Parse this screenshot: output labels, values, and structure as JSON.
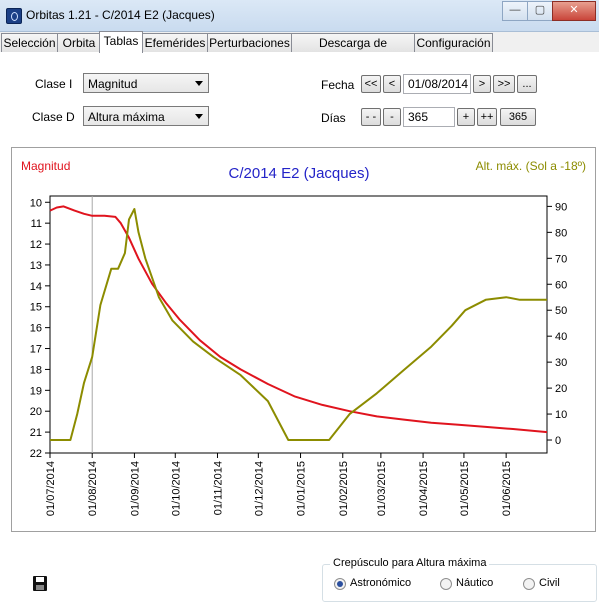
{
  "window": {
    "title": "Orbitas 1.21 - C/2014 E2 (Jacques)",
    "minimize_glyph": "—",
    "maximize_glyph": "▢",
    "close_glyph": "✕"
  },
  "tabs": [
    "Selección",
    "Orbita",
    "Tablas",
    "Efemérides",
    "Perturbaciones",
    "Descarga de elementos",
    "Configuración"
  ],
  "active_tab": "Tablas",
  "controls": {
    "clase_i_label": "Clase I",
    "clase_i_value": "Magnitud",
    "clase_d_label": "Clase D",
    "clase_d_value": "Altura máxima",
    "fecha_label": "Fecha",
    "fecha_value": "01/08/2014",
    "fecha_buttons": [
      "<<",
      "<",
      ">",
      ">>",
      "..."
    ],
    "dias_label": "Días",
    "dias_value": "365",
    "dias_buttons": [
      "- -",
      "-",
      "+",
      "++",
      "365"
    ]
  },
  "chart_data": {
    "type": "line",
    "title": "C/2014 E2 (Jacques)",
    "ylabel_left": "Magnitud",
    "ylabel_right": "Alt. máx. (Sol a -18º)",
    "y_left_ticks": [
      10,
      11,
      12,
      13,
      14,
      15,
      16,
      17,
      18,
      19,
      20,
      21,
      22
    ],
    "y_left_range": [
      9.7,
      22
    ],
    "y_right_ticks": [
      0,
      10,
      20,
      30,
      40,
      50,
      60,
      70,
      80,
      90
    ],
    "y_right_range": [
      -5,
      94
    ],
    "x_ticks": [
      "01/07/2014",
      "01/08/2014",
      "01/09/2014",
      "01/10/2014",
      "01/11/2014",
      "01/12/2014",
      "01/01/2015",
      "01/02/2015",
      "01/03/2015",
      "01/04/2015",
      "01/05/2015",
      "01/06/2015"
    ],
    "x_range_days": [
      0,
      365
    ],
    "marker_date_day": 31,
    "series": [
      {
        "name": "Magnitud",
        "axis": "left",
        "color": "#e0141e",
        "x": [
          0,
          5,
          10,
          18,
          25,
          31,
          40,
          48,
          52,
          58,
          65,
          75,
          85,
          95,
          110,
          125,
          140,
          160,
          180,
          200,
          220,
          240,
          260,
          280,
          300,
          320,
          340,
          365
        ],
        "y": [
          10.4,
          10.25,
          10.2,
          10.4,
          10.55,
          10.65,
          10.65,
          10.7,
          11.0,
          11.7,
          12.7,
          13.9,
          14.8,
          15.6,
          16.6,
          17.4,
          18.0,
          18.7,
          19.3,
          19.7,
          20.0,
          20.25,
          20.4,
          20.55,
          20.65,
          20.75,
          20.85,
          21.0
        ]
      },
      {
        "name": "Alt. máx. (Sol a -18º)",
        "axis": "right",
        "color": "#8c8c00",
        "x": [
          0,
          10,
          15,
          20,
          25,
          31,
          37,
          45,
          50,
          55,
          58,
          62,
          65,
          70,
          80,
          90,
          105,
          120,
          140,
          160,
          175,
          195,
          205,
          220,
          240,
          260,
          280,
          295,
          305,
          320,
          335,
          345,
          365
        ],
        "y": [
          0,
          0,
          0,
          10,
          22,
          32,
          52,
          66,
          66,
          72,
          85,
          89,
          80,
          70,
          55,
          46,
          38,
          32,
          25,
          15,
          0,
          0,
          0,
          10,
          18,
          27,
          36,
          44,
          50,
          54,
          55,
          54,
          54
        ]
      }
    ]
  },
  "twilight": {
    "title": "Crepúsculo para Altura máxima",
    "options": [
      {
        "label": "Astronómico",
        "selected": true
      },
      {
        "label": "Náutico",
        "selected": false
      },
      {
        "label": "Civil",
        "selected": false
      }
    ]
  },
  "icons": {
    "save": "floppy-disk-icon",
    "app": "orbitas-app-icon"
  }
}
